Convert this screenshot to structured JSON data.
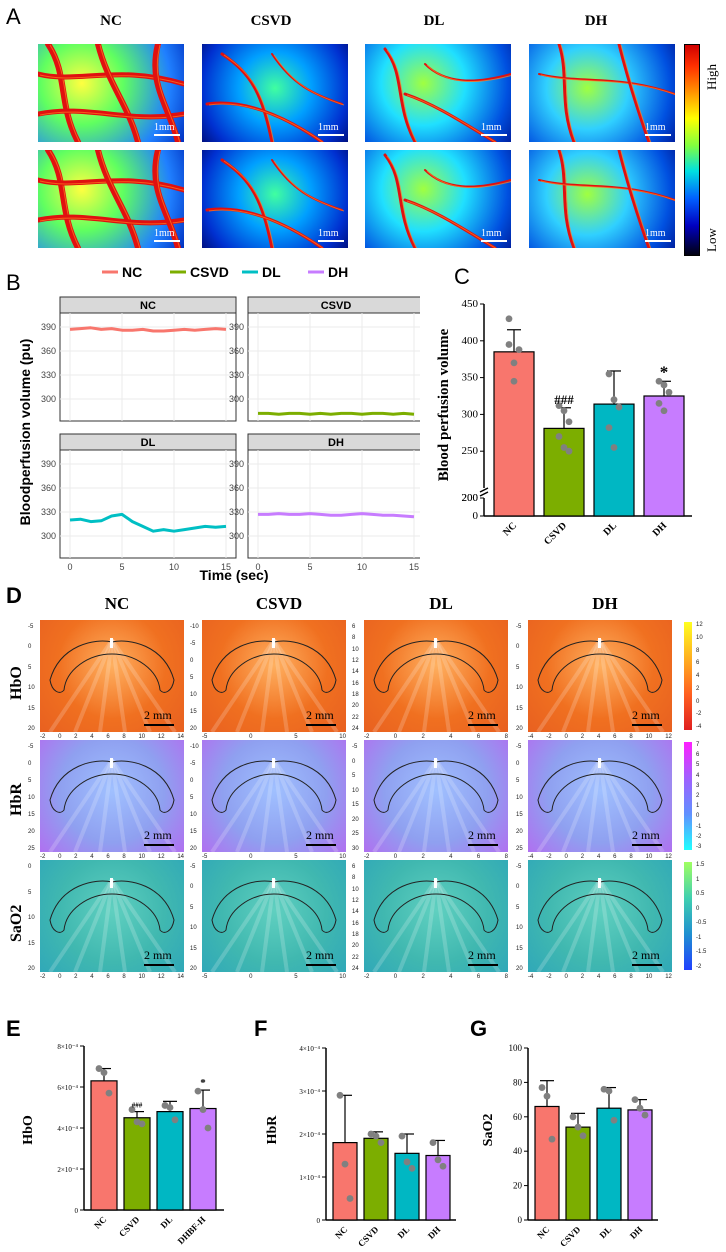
{
  "panelA": {
    "letter": "A",
    "columns": [
      "NC",
      "CSVD",
      "DL",
      "DH"
    ],
    "scale_label": "1mm",
    "colorbar": {
      "high": "High",
      "low": "Low"
    }
  },
  "panelB": {
    "letter": "B",
    "legend": [
      "NC",
      "CSVD",
      "DL",
      "DH"
    ],
    "facets": [
      "NC",
      "CSVD",
      "DL",
      "DH"
    ],
    "ylabel": "Bloodperfusion volume (pu)",
    "xlabel": "Time (sec)",
    "yticks": [
      "390",
      "360",
      "330",
      "300"
    ],
    "xticks": [
      "0",
      "5",
      "10",
      "15"
    ]
  },
  "panelD": {
    "letter": "D",
    "columns": [
      "NC",
      "CSVD",
      "DL",
      "DH"
    ],
    "rows": [
      "HbO",
      "HbR",
      "SaO2"
    ],
    "scale_label": "2 mm"
  },
  "panelLetters": {
    "C": "C",
    "E": "E",
    "F": "F",
    "G": "G"
  },
  "colors": {
    "NC": "#f8766d",
    "CSVD": "#7cae00",
    "DL": "#00bfc4",
    "DH": "#c77cff",
    "barNC": "#f8766d",
    "barCSVD": "#7cae00",
    "barDL": "#00b7c3",
    "barDH": "#c77cff"
  },
  "chart_data": [
    {
      "id": "B",
      "type": "line",
      "title": "",
      "xlabel": "Time (sec)",
      "ylabel": "Bloodperfusion volume (pu)",
      "ylim": [
        280,
        400
      ],
      "xlim": [
        0,
        15
      ],
      "series": [
        {
          "name": "NC",
          "x": [
            0,
            1,
            2,
            3,
            4,
            5,
            6,
            7,
            8,
            9,
            10,
            11,
            12,
            13,
            14,
            15
          ],
          "values": [
            387,
            388,
            389,
            387,
            388,
            386,
            386,
            387,
            385,
            385,
            386,
            387,
            386,
            387,
            388,
            387
          ]
        },
        {
          "name": "CSVD",
          "x": [
            0,
            1,
            2,
            3,
            4,
            5,
            6,
            7,
            8,
            9,
            10,
            11,
            12,
            13,
            14,
            15
          ],
          "values": [
            282,
            282,
            281,
            282,
            282,
            281,
            282,
            281,
            282,
            282,
            281,
            282,
            282,
            281,
            282,
            281
          ]
        },
        {
          "name": "DL",
          "x": [
            0,
            1,
            2,
            3,
            4,
            5,
            6,
            7,
            8,
            9,
            10,
            11,
            12,
            13,
            14,
            15
          ],
          "values": [
            320,
            321,
            318,
            319,
            325,
            327,
            318,
            312,
            306,
            308,
            306,
            308,
            310,
            312,
            311,
            312
          ]
        },
        {
          "name": "DH",
          "x": [
            0,
            1,
            2,
            3,
            4,
            5,
            6,
            7,
            8,
            9,
            10,
            11,
            12,
            13,
            14,
            15
          ],
          "values": [
            327,
            327,
            328,
            327,
            327,
            328,
            327,
            326,
            326,
            327,
            328,
            327,
            326,
            326,
            325,
            324
          ]
        }
      ]
    },
    {
      "id": "C",
      "type": "bar",
      "title": "",
      "ylabel": "Blood perfusion volume",
      "categories": [
        "NC",
        "CSVD",
        "DL",
        "DH"
      ],
      "values": [
        385,
        281,
        314,
        325
      ],
      "errors": [
        30,
        28,
        45,
        20
      ],
      "points": [
        [
          430,
          370,
          388,
          395,
          345
        ],
        [
          312,
          305,
          290,
          270,
          255,
          250
        ],
        [
          355,
          320,
          310,
          282,
          255
        ],
        [
          345,
          340,
          330,
          315,
          305
        ]
      ],
      "annotations": [
        "",
        "###",
        "",
        "*"
      ],
      "ylim": [
        0,
        450
      ],
      "yticks": [
        "0",
        "200",
        "200",
        "250",
        "300",
        "350",
        "400",
        "450"
      ]
    },
    {
      "id": "E",
      "type": "bar",
      "ylabel": "HbO",
      "categories": [
        "NC",
        "CSVD",
        "DL",
        "DHBF-H"
      ],
      "values": [
        6.3,
        4.5,
        4.8,
        4.95
      ],
      "errors": [
        0.6,
        0.3,
        0.5,
        0.9
      ],
      "points": [
        [
          6.9,
          6.7,
          5.7
        ],
        [
          4.9,
          4.3,
          4.2
        ],
        [
          5.1,
          5.0,
          4.4
        ],
        [
          5.8,
          4.9,
          4.0
        ]
      ],
      "annotations": [
        "",
        "###",
        "",
        "*"
      ],
      "ylim": [
        0,
        8
      ],
      "yticks": [
        "0",
        "2×10⁻⁴",
        "4×10⁻⁴",
        "6×10⁻⁴",
        "8×10⁻⁴"
      ]
    },
    {
      "id": "F",
      "type": "bar",
      "ylabel": "HbR",
      "categories": [
        "NC",
        "CSVD",
        "DL",
        "DH"
      ],
      "values": [
        1.8,
        1.9,
        1.55,
        1.5
      ],
      "errors": [
        1.1,
        0.15,
        0.45,
        0.35
      ],
      "points": [
        [
          2.9,
          1.3,
          0.5
        ],
        [
          2.0,
          1.95,
          1.8
        ],
        [
          1.95,
          1.35,
          1.2
        ],
        [
          1.8,
          1.4,
          1.25
        ]
      ],
      "annotations": [
        "",
        "",
        "",
        ""
      ],
      "ylim": [
        0,
        4
      ],
      "yticks": [
        "0",
        "1×10⁻⁴",
        "2×10⁻⁴",
        "3×10⁻⁴",
        "4×10⁻⁴"
      ]
    },
    {
      "id": "G",
      "type": "bar",
      "ylabel": "SaO2",
      "categories": [
        "NC",
        "CSVD",
        "DL",
        "DH"
      ],
      "values": [
        66,
        54,
        65,
        64
      ],
      "errors": [
        15,
        8,
        12,
        6
      ],
      "points": [
        [
          77,
          72,
          47
        ],
        [
          60,
          54,
          49
        ],
        [
          76,
          75,
          58
        ],
        [
          70,
          65,
          61
        ]
      ],
      "annotations": [
        "",
        "",
        "",
        ""
      ],
      "ylim": [
        0,
        100
      ],
      "yticks": [
        "0",
        "20",
        "40",
        "60",
        "80",
        "100"
      ]
    }
  ]
}
